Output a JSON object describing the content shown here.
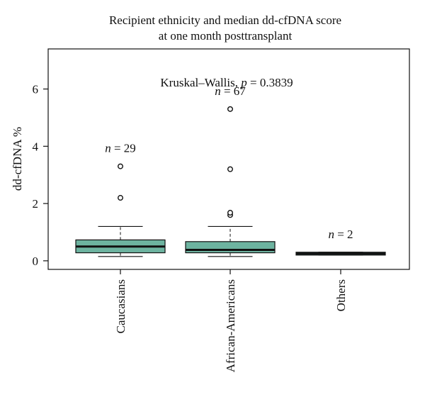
{
  "chart_data": {
    "type": "boxplot",
    "title_line1": "Recipient ethnicity and median dd-cfDNA score",
    "title_line2": "at one month posttransplant",
    "ylabel": "dd-cfDNA %",
    "xlabel": "",
    "ylim": [
      -0.3,
      7.4
    ],
    "yticks": [
      0,
      2,
      4,
      6
    ],
    "grid": false,
    "box_color": "#6db3a0",
    "annotation": {
      "test": "Kruskal–Wallis, ",
      "p_symbol": "p",
      "p_value": " = 0.3839",
      "value": 0.3839
    },
    "categories": [
      "Caucasians",
      "African-Americans",
      "Others"
    ],
    "groups": [
      {
        "category": "Caucasians",
        "n_symbol": "n",
        "n_text": " = 29",
        "n": 29,
        "whisker_low": 0.15,
        "q1": 0.28,
        "median": 0.5,
        "q3": 0.73,
        "whisker_high": 1.2,
        "outliers": [
          2.2,
          3.3
        ]
      },
      {
        "category": "African-Americans",
        "n_symbol": "n",
        "n_text": " = 67",
        "n": 67,
        "whisker_low": 0.15,
        "q1": 0.28,
        "median": 0.38,
        "q3": 0.67,
        "whisker_high": 1.2,
        "outliers": [
          1.6,
          1.68,
          3.2,
          5.3
        ]
      },
      {
        "category": "Others",
        "n_symbol": "n",
        "n_text": " = 2",
        "n": 2,
        "whisker_low": 0.2,
        "q1": 0.2,
        "median": 0.25,
        "q3": 0.3,
        "whisker_high": 0.3,
        "outliers": []
      }
    ]
  }
}
